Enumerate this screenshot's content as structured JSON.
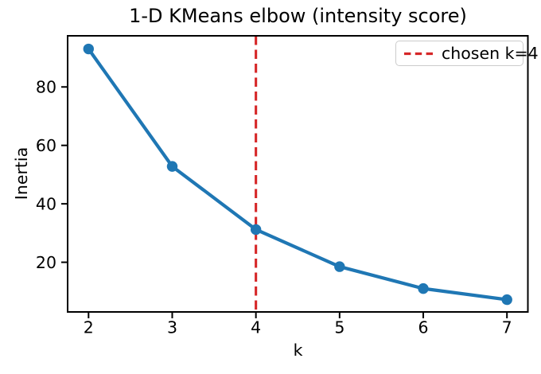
{
  "figure": {
    "background": "#ffffff",
    "text_color": "#000000",
    "spine_color": "#000000"
  },
  "legend": {
    "entries": [
      {
        "label": "chosen k=4",
        "color": "#d62728",
        "style": "dashed"
      }
    ],
    "position": "upper right"
  },
  "chart_data": {
    "type": "line",
    "title": "1-D KMeans elbow (intensity score)",
    "xlabel": "k",
    "ylabel": "Inertia",
    "x": [
      2,
      3,
      4,
      5,
      6,
      7
    ],
    "y": [
      93.0,
      52.8,
      31.2,
      18.5,
      11.0,
      7.2
    ],
    "x_ticks": [
      "2",
      "3",
      "4",
      "5",
      "6",
      "7"
    ],
    "x_tick_values": [
      2,
      3,
      4,
      5,
      6,
      7
    ],
    "y_ticks": [
      "20",
      "40",
      "60",
      "80"
    ],
    "y_tick_values": [
      20,
      40,
      60,
      80
    ],
    "xlim": [
      1.75,
      7.25
    ],
    "ylim": [
      3.0,
      97.5
    ],
    "line_color": "#1f77b4",
    "marker": "circle",
    "marker_color": "#1f77b4",
    "grid": false,
    "vline": {
      "x": 4,
      "color": "#d62728",
      "style": "dashed",
      "label": "chosen k=4"
    },
    "legend_position": "upper right"
  }
}
